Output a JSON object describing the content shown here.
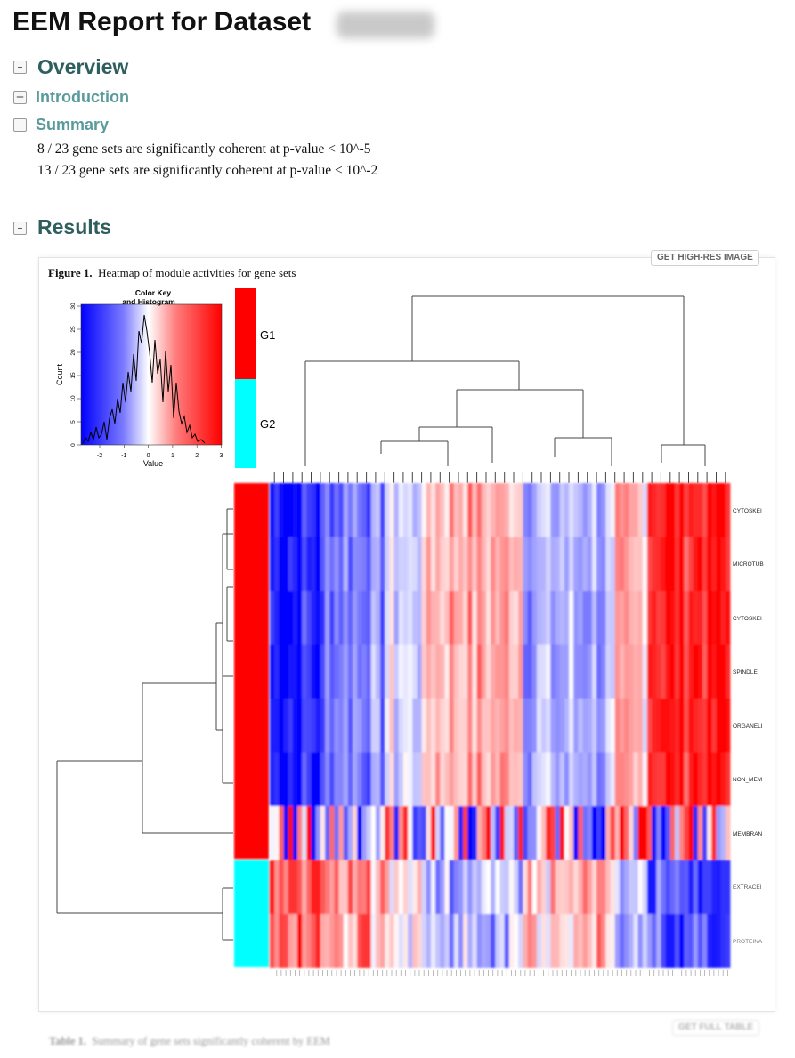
{
  "page": {
    "title": "EEM Report for Dataset",
    "dataset_id_redacted": "xYRKL"
  },
  "sections": {
    "overview": {
      "label": "Overview",
      "toggle": "–"
    },
    "introduction": {
      "label": "Introduction",
      "toggle": "+"
    },
    "summary": {
      "label": "Summary",
      "toggle": "–"
    },
    "results": {
      "label": "Results",
      "toggle": "–"
    }
  },
  "summary_lines": [
    "8 / 23 gene sets are significantly coherent at p-value < 10^-5",
    "13 / 23 gene sets are significantly coherent at p-value < 10^-2"
  ],
  "figure": {
    "label": "Figure 1.",
    "caption": "Heatmap of module activities for gene sets",
    "hires_button": "GET HIGH-RES IMAGE",
    "color_key": {
      "title_line1": "Color Key",
      "title_line2": "and Histogram",
      "xlabel": "Value",
      "ylabel": "Count",
      "x_ticks": [
        "-2",
        "-1",
        "0",
        "1",
        "2",
        "3"
      ],
      "y_ticks": [
        "0",
        "5",
        "10",
        "15",
        "20",
        "25",
        "30"
      ]
    },
    "groups": [
      {
        "name": "G1",
        "color": "#ff0000"
      },
      {
        "name": "G2",
        "color": "#00ffff"
      }
    ],
    "row_labels": [
      "CYTOSKEI",
      "MICROTUB",
      "CYTOSKEI",
      "SPINDLE",
      "ORGANELI",
      "NON_MEM",
      "MEMBRAN",
      "EXTRACEI",
      "PROTEINA"
    ],
    "row_groups": [
      "G1",
      "G1",
      "G1",
      "G1",
      "G1",
      "G1",
      "G1",
      "G2",
      "G2"
    ]
  },
  "table": {
    "full_table_button": "GET FULL TABLE",
    "label": "Table 1.",
    "caption": "Summary of gene sets significantly coherent by EEM"
  },
  "colors": {
    "heading": "#2e5e5e",
    "subheading": "#5a9a9a",
    "low": "#0000ff",
    "mid": "#ffffff",
    "high": "#ff0000"
  }
}
